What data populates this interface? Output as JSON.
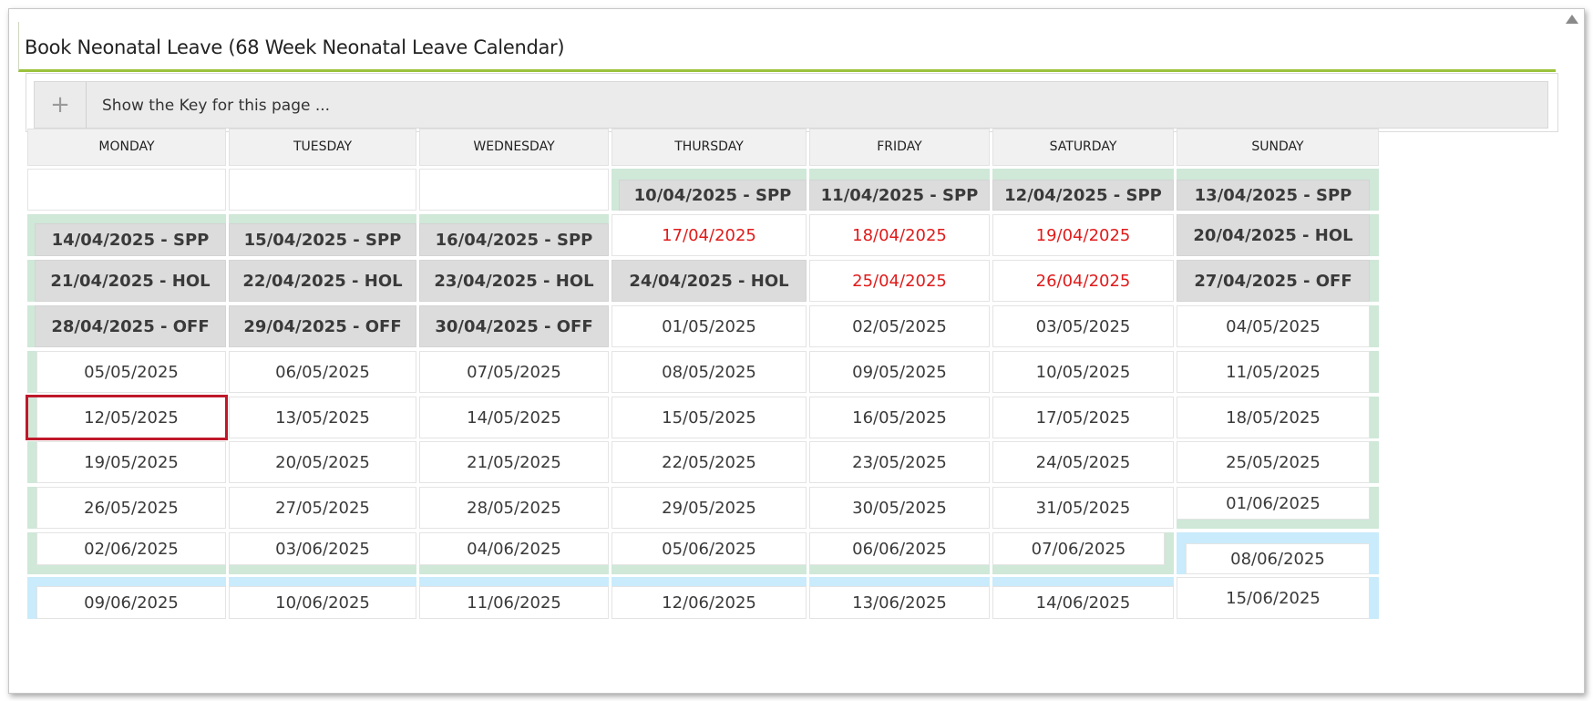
{
  "panel": {
    "title": "Book Neonatal Leave (68 Week Neonatal Leave Calendar)"
  },
  "key_toggle": {
    "label": "Show the Key for this page ...",
    "icon": "plus-icon"
  },
  "colors": {
    "accent_underline": "#9bc23c",
    "spp_band": "#cfe8d8",
    "next_band": "#c9ebfb",
    "booked_cell": "#dcdcdc",
    "bank_holiday_text": "#e01b1b",
    "selected_border": "#c0182a"
  },
  "calendar": {
    "weekdays": [
      "MONDAY",
      "TUESDAY",
      "WEDNESDAY",
      "THURSDAY",
      "FRIDAY",
      "SATURDAY",
      "SUNDAY"
    ],
    "weeks": [
      [
        "",
        "",
        "",
        "10/04/2025 - SPP",
        "11/04/2025 - SPP",
        "12/04/2025 - SPP",
        "13/04/2025 - SPP"
      ],
      [
        "14/04/2025 - SPP",
        "15/04/2025 - SPP",
        "16/04/2025 - SPP",
        "17/04/2025",
        "18/04/2025",
        "19/04/2025",
        "20/04/2025 - HOL"
      ],
      [
        "21/04/2025 - HOL",
        "22/04/2025 - HOL",
        "23/04/2025 - HOL",
        "24/04/2025 - HOL",
        "25/04/2025",
        "26/04/2025",
        "27/04/2025 - OFF"
      ],
      [
        "28/04/2025 - OFF",
        "29/04/2025 - OFF",
        "30/04/2025 - OFF",
        "01/05/2025",
        "02/05/2025",
        "03/05/2025",
        "04/05/2025"
      ],
      [
        "05/05/2025",
        "06/05/2025",
        "07/05/2025",
        "08/05/2025",
        "09/05/2025",
        "10/05/2025",
        "11/05/2025"
      ],
      [
        "12/05/2025",
        "13/05/2025",
        "14/05/2025",
        "15/05/2025",
        "16/05/2025",
        "17/05/2025",
        "18/05/2025"
      ],
      [
        "19/05/2025",
        "20/05/2025",
        "21/05/2025",
        "22/05/2025",
        "23/05/2025",
        "24/05/2025",
        "25/05/2025"
      ],
      [
        "26/05/2025",
        "27/05/2025",
        "28/05/2025",
        "29/05/2025",
        "30/05/2025",
        "31/05/2025",
        "01/06/2025"
      ],
      [
        "02/06/2025",
        "03/06/2025",
        "04/06/2025",
        "05/06/2025",
        "06/06/2025",
        "07/06/2025",
        "08/06/2025"
      ],
      [
        "09/06/2025",
        "10/06/2025",
        "11/06/2025",
        "12/06/2025",
        "13/06/2025",
        "14/06/2025",
        "15/06/2025"
      ]
    ],
    "booked_dates": [
      "10/04/2025 - SPP",
      "11/04/2025 - SPP",
      "12/04/2025 - SPP",
      "13/04/2025 - SPP",
      "14/04/2025 - SPP",
      "15/04/2025 - SPP",
      "16/04/2025 - SPP",
      "20/04/2025 - HOL",
      "21/04/2025 - HOL",
      "22/04/2025 - HOL",
      "23/04/2025 - HOL",
      "24/04/2025 - HOL",
      "27/04/2025 - OFF",
      "28/04/2025 - OFF",
      "29/04/2025 - OFF",
      "30/04/2025 - OFF"
    ],
    "bank_holiday_dates": [
      "17/04/2025",
      "18/04/2025",
      "19/04/2025",
      "25/04/2025",
      "26/04/2025"
    ],
    "selected_date": "12/05/2025"
  }
}
